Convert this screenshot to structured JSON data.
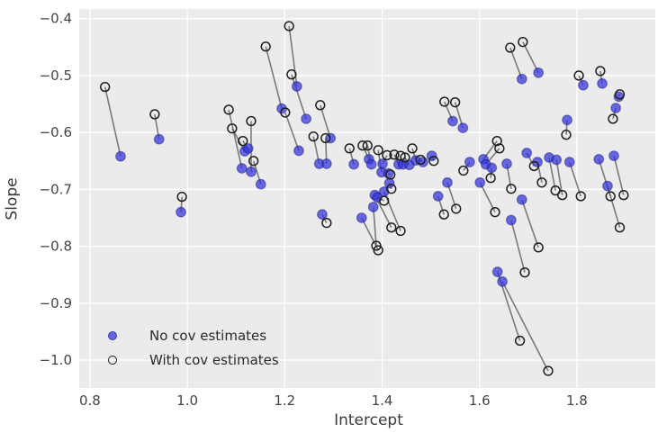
{
  "figure": {
    "xlabel": "Intercept",
    "ylabel": "Slope",
    "legend": {
      "items": [
        {
          "label": "No cov estimates",
          "marker": "filled-circle"
        },
        {
          "label": "With cov estimates",
          "marker": "open-circle"
        }
      ],
      "position": "lower left"
    }
  },
  "style": {
    "axes_background": "#ebebeb",
    "grid_color": "#ffffff",
    "no_cov_fill": "rgba(50,50,219,0.72)",
    "no_cov_edge": "rgba(15,15,110,0.45)",
    "with_cov_edge": "#1f1f1f",
    "connector_color": "#5e5e5e",
    "tick_label_color": "#444444"
  },
  "chart_data": {
    "type": "scatter",
    "title": "",
    "xlabel": "Intercept",
    "ylabel": "Slope",
    "xlim": [
      0.778,
      1.961
    ],
    "ylim": [
      -1.049,
      -0.383
    ],
    "x_ticks": [
      0.8,
      1.0,
      1.2,
      1.4,
      1.6,
      1.8
    ],
    "x_tick_labels": [
      "0.8",
      "1.0",
      "1.2",
      "1.4",
      "1.6",
      "1.8"
    ],
    "y_ticks": [
      -0.4,
      -0.5,
      -0.6,
      -0.7,
      -0.8,
      -0.9,
      -1.0
    ],
    "y_tick_labels": [
      "−0.4",
      "−0.5",
      "−0.6",
      "−0.7",
      "−0.8",
      "−0.9",
      "−1.0"
    ],
    "grid": true,
    "legend_position": "lower left",
    "series_names": [
      "No cov estimates",
      "With cov estimates"
    ],
    "pairs": [
      {
        "no_cov": [
          0.863,
          -0.642
        ],
        "with_cov": [
          0.831,
          -0.52
        ]
      },
      {
        "no_cov": [
          0.942,
          -0.612
        ],
        "with_cov": [
          0.933,
          -0.568
        ]
      },
      {
        "no_cov": [
          0.987,
          -0.74
        ],
        "with_cov": [
          0.989,
          -0.713
        ]
      },
      {
        "no_cov": [
          1.118,
          -0.633
        ],
        "with_cov": [
          1.092,
          -0.593
        ]
      },
      {
        "no_cov": [
          1.112,
          -0.663
        ],
        "with_cov": [
          1.085,
          -0.56
        ]
      },
      {
        "no_cov": [
          1.125,
          -0.628
        ],
        "with_cov": [
          1.114,
          -0.615
        ]
      },
      {
        "no_cov": [
          1.131,
          -0.669
        ],
        "with_cov": [
          1.131,
          -0.58
        ]
      },
      {
        "no_cov": [
          1.151,
          -0.691
        ],
        "with_cov": [
          1.136,
          -0.65
        ]
      },
      {
        "no_cov": [
          1.194,
          -0.558
        ],
        "with_cov": [
          1.161,
          -0.449
        ]
      },
      {
        "no_cov": [
          1.229,
          -0.632
        ],
        "with_cov": [
          1.201,
          -0.565
        ]
      },
      {
        "no_cov": [
          1.225,
          -0.519
        ],
        "with_cov": [
          1.209,
          -0.413
        ]
      },
      {
        "no_cov": [
          1.244,
          -0.576
        ],
        "with_cov": [
          1.214,
          -0.498
        ]
      },
      {
        "no_cov": [
          1.271,
          -0.655
        ],
        "with_cov": [
          1.259,
          -0.607
        ]
      },
      {
        "no_cov": [
          1.286,
          -0.655
        ],
        "with_cov": [
          1.284,
          -0.61
        ]
      },
      {
        "no_cov": [
          1.294,
          -0.61
        ],
        "with_cov": [
          1.273,
          -0.552
        ]
      },
      {
        "no_cov": [
          1.277,
          -0.744
        ],
        "with_cov": [
          1.286,
          -0.759
        ]
      },
      {
        "no_cov": [
          1.342,
          -0.656
        ],
        "with_cov": [
          1.333,
          -0.628
        ]
      },
      {
        "no_cov": [
          1.373,
          -0.647
        ],
        "with_cov": [
          1.36,
          -0.623
        ]
      },
      {
        "no_cov": [
          1.378,
          -0.656
        ],
        "with_cov": [
          1.37,
          -0.623
        ]
      },
      {
        "no_cov": [
          1.399,
          -0.67
        ],
        "with_cov": [
          1.392,
          -0.631
        ]
      },
      {
        "no_cov": [
          1.401,
          -0.655
        ],
        "with_cov": [
          1.41,
          -0.64
        ]
      },
      {
        "no_cov": [
          1.434,
          -0.656
        ],
        "with_cov": [
          1.425,
          -0.639
        ]
      },
      {
        "no_cov": [
          1.443,
          -0.656
        ],
        "with_cov": [
          1.438,
          -0.641
        ]
      },
      {
        "no_cov": [
          1.456,
          -0.657
        ],
        "with_cov": [
          1.447,
          -0.644
        ]
      },
      {
        "no_cov": [
          1.469,
          -0.649
        ],
        "with_cov": [
          1.462,
          -0.628
        ]
      },
      {
        "no_cov": [
          1.484,
          -0.652
        ],
        "with_cov": [
          1.479,
          -0.648
        ]
      },
      {
        "no_cov": [
          1.502,
          -0.641
        ],
        "with_cov": [
          1.506,
          -0.65
        ]
      },
      {
        "no_cov": [
          1.413,
          -0.672
        ],
        "with_cov": [
          1.417,
          -0.674
        ]
      },
      {
        "no_cov": [
          1.415,
          -0.689
        ],
        "with_cov": [
          1.419,
          -0.699
        ]
      },
      {
        "no_cov": [
          1.385,
          -0.71
        ],
        "with_cov": [
          1.419,
          -0.767
        ]
      },
      {
        "no_cov": [
          1.404,
          -0.704
        ],
        "with_cov": [
          1.438,
          -0.773
        ]
      },
      {
        "no_cov": [
          1.382,
          -0.731
        ],
        "with_cov": [
          1.388,
          -0.799
        ]
      },
      {
        "no_cov": [
          1.358,
          -0.75
        ],
        "with_cov": [
          1.392,
          -0.807
        ]
      },
      {
        "no_cov": [
          1.39,
          -0.714
        ],
        "with_cov": [
          1.404,
          -0.72
        ]
      },
      {
        "no_cov": [
          1.515,
          -0.712
        ],
        "with_cov": [
          1.527,
          -0.744
        ]
      },
      {
        "no_cov": [
          1.534,
          -0.688
        ],
        "with_cov": [
          1.552,
          -0.734
        ]
      },
      {
        "no_cov": [
          1.545,
          -0.58
        ],
        "with_cov": [
          1.528,
          -0.546
        ]
      },
      {
        "no_cov": [
          1.566,
          -0.592
        ],
        "with_cov": [
          1.55,
          -0.547
        ]
      },
      {
        "no_cov": [
          1.687,
          -0.506
        ],
        "with_cov": [
          1.663,
          -0.451
        ]
      },
      {
        "no_cov": [
          1.721,
          -0.495
        ],
        "with_cov": [
          1.689,
          -0.441
        ]
      },
      {
        "no_cov": [
          1.813,
          -0.517
        ],
        "with_cov": [
          1.804,
          -0.5
        ]
      },
      {
        "no_cov": [
          1.852,
          -0.514
        ],
        "with_cov": [
          1.848,
          -0.492
        ]
      },
      {
        "no_cov": [
          1.886,
          -0.537
        ],
        "with_cov": [
          1.888,
          -0.533
        ]
      },
      {
        "no_cov": [
          1.88,
          -0.557
        ],
        "with_cov": [
          1.874,
          -0.576
        ]
      },
      {
        "no_cov": [
          1.78,
          -0.578
        ],
        "with_cov": [
          1.778,
          -0.604
        ]
      },
      {
        "no_cov": [
          1.58,
          -0.652
        ],
        "with_cov": [
          1.567,
          -0.667
        ]
      },
      {
        "no_cov": [
          1.608,
          -0.647
        ],
        "with_cov": [
          1.636,
          -0.615
        ]
      },
      {
        "no_cov": [
          1.613,
          -0.656
        ],
        "with_cov": [
          1.641,
          -0.628
        ]
      },
      {
        "no_cov": [
          1.625,
          -0.662
        ],
        "with_cov": [
          1.623,
          -0.68
        ]
      },
      {
        "no_cov": [
          1.601,
          -0.688
        ],
        "with_cov": [
          1.632,
          -0.74
        ]
      },
      {
        "no_cov": [
          1.656,
          -0.655
        ],
        "with_cov": [
          1.665,
          -0.699
        ]
      },
      {
        "no_cov": [
          1.687,
          -0.718
        ],
        "with_cov": [
          1.721,
          -0.802
        ]
      },
      {
        "no_cov": [
          1.665,
          -0.754
        ],
        "with_cov": [
          1.693,
          -0.846
        ]
      },
      {
        "no_cov": [
          1.637,
          -0.845
        ],
        "with_cov": [
          1.683,
          -0.966
        ]
      },
      {
        "no_cov": [
          1.647,
          -0.862
        ],
        "with_cov": [
          1.741,
          -1.019
        ]
      },
      {
        "no_cov": [
          1.697,
          -0.636
        ],
        "with_cov": [
          1.712,
          -0.659
        ]
      },
      {
        "no_cov": [
          1.719,
          -0.652
        ],
        "with_cov": [
          1.728,
          -0.688
        ]
      },
      {
        "no_cov": [
          1.743,
          -0.644
        ],
        "with_cov": [
          1.756,
          -0.702
        ]
      },
      {
        "no_cov": [
          1.758,
          -0.648
        ],
        "with_cov": [
          1.77,
          -0.71
        ]
      },
      {
        "no_cov": [
          1.785,
          -0.652
        ],
        "with_cov": [
          1.808,
          -0.712
        ]
      },
      {
        "no_cov": [
          1.845,
          -0.647
        ],
        "with_cov": [
          1.869,
          -0.712
        ]
      },
      {
        "no_cov": [
          1.876,
          -0.641
        ],
        "with_cov": [
          1.896,
          -0.71
        ]
      },
      {
        "no_cov": [
          1.863,
          -0.694
        ],
        "with_cov": [
          1.888,
          -0.767
        ]
      }
    ]
  }
}
